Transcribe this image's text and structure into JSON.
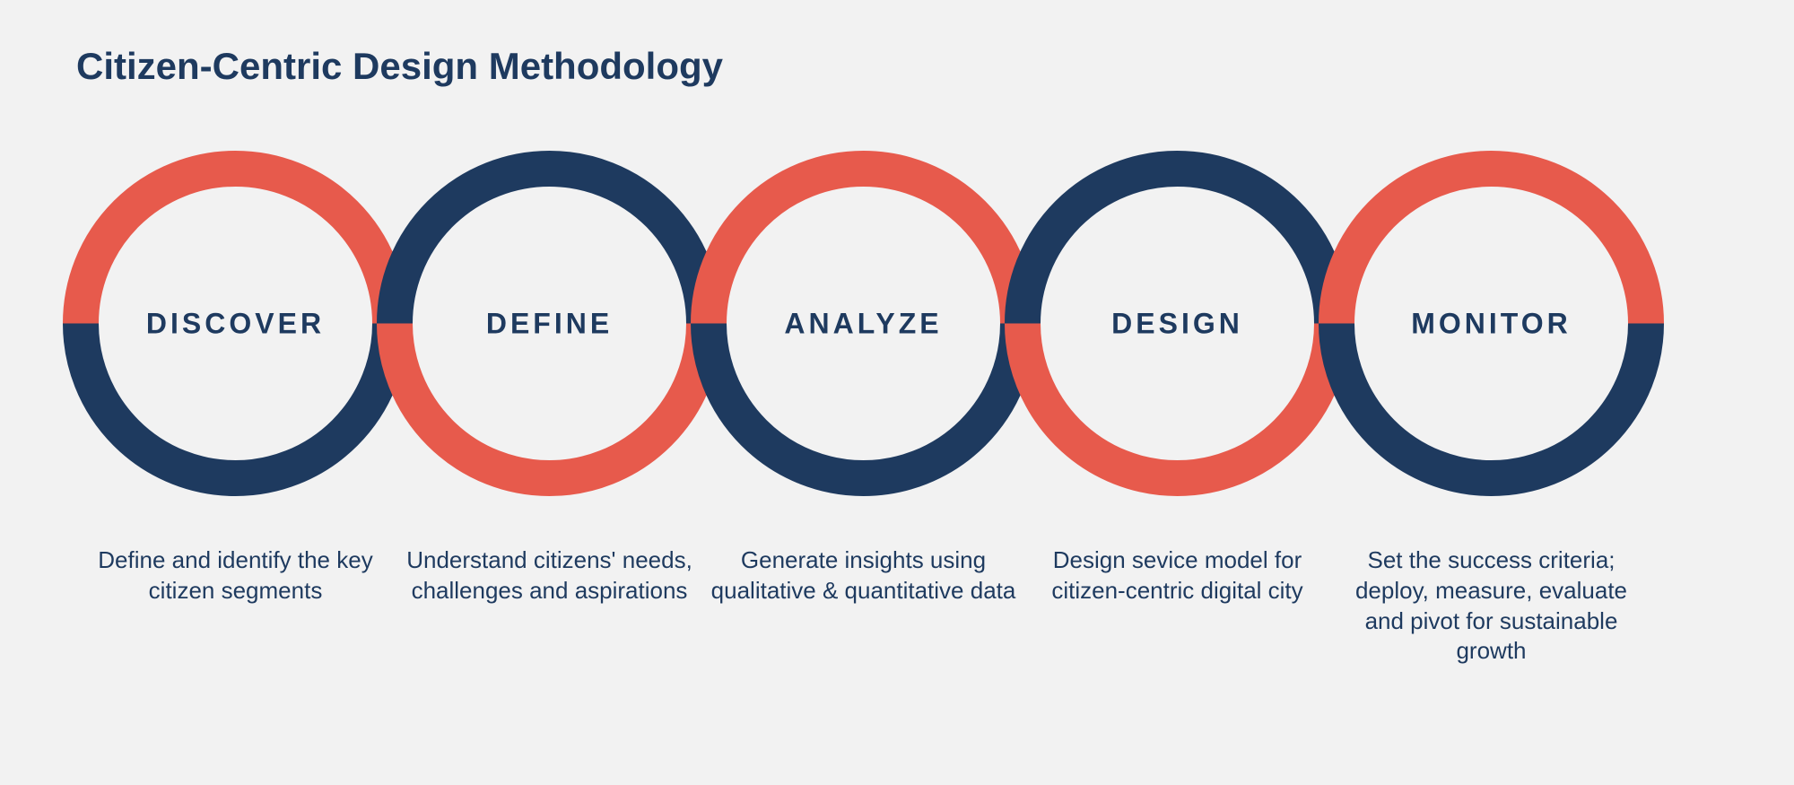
{
  "title": "Citizen-Centric Design Methodology",
  "colors": {
    "background": "#f2f2f2",
    "text": "#1e3a5f",
    "red": "#e75a4c",
    "navy": "#1e3a5f"
  },
  "circle_size": 385,
  "stroke_width": 40,
  "circle_spacing": 390,
  "overlap": 40,
  "steps": [
    {
      "label": "DISCOVER",
      "top_color": "#e75a4c",
      "bottom_color": "#1e3a5f",
      "description": "Define and identify the key citizen segments"
    },
    {
      "label": "DEFINE",
      "top_color": "#1e3a5f",
      "bottom_color": "#e75a4c",
      "description": "Understand citizens' needs, challenges and aspirations"
    },
    {
      "label": "ANALYZE",
      "top_color": "#e75a4c",
      "bottom_color": "#1e3a5f",
      "description": "Generate insights using qualitative & quantitative data"
    },
    {
      "label": "DESIGN",
      "top_color": "#1e3a5f",
      "bottom_color": "#e75a4c",
      "description": "Design sevice model for citizen-centric digital city"
    },
    {
      "label": "MONITOR",
      "top_color": "#e75a4c",
      "bottom_color": "#1e3a5f",
      "description": "Set the success criteria; deploy, measure, evaluate and pivot for sustainable growth"
    }
  ]
}
